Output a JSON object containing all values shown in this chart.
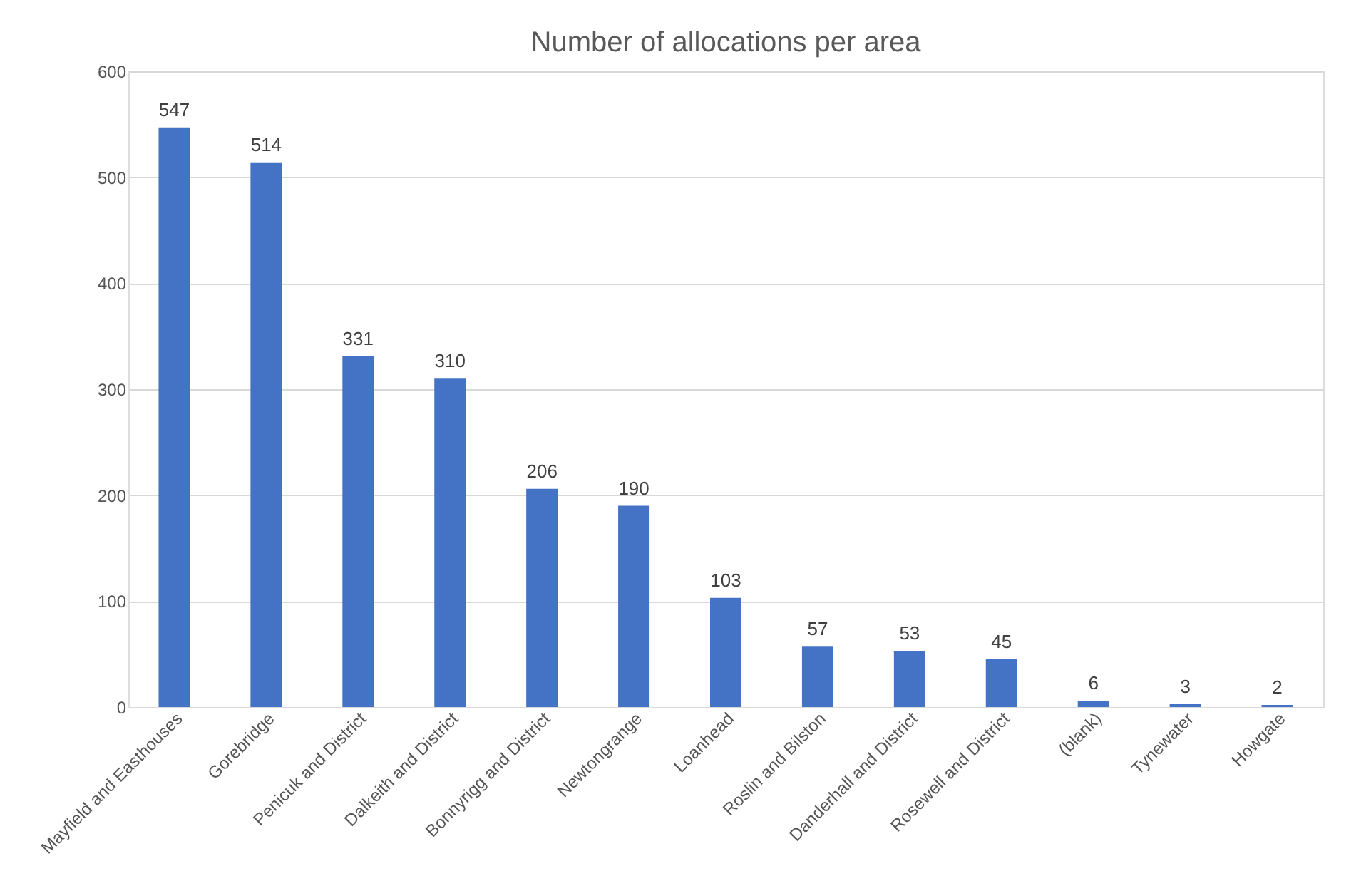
{
  "chart_data": {
    "type": "bar",
    "title": "Number of allocations per area",
    "categories": [
      "Mayfield and Easthouses",
      "Gorebridge",
      "Penicuk and District",
      "Dalkeith and District",
      "Bonnyrigg and District",
      "Newtongrange",
      "Loanhead",
      "Roslin and Bilston",
      "Danderhall and District",
      "Rosewell and District",
      "(blank)",
      "Tynewater",
      "Howgate"
    ],
    "values": [
      547,
      514,
      331,
      310,
      206,
      190,
      103,
      57,
      53,
      45,
      6,
      3,
      2
    ],
    "color": "#4472c4",
    "ylim": [
      0,
      600
    ],
    "yticks": [
      0,
      100,
      200,
      300,
      400,
      500,
      600
    ],
    "grid": "y",
    "data_labels": true
  }
}
